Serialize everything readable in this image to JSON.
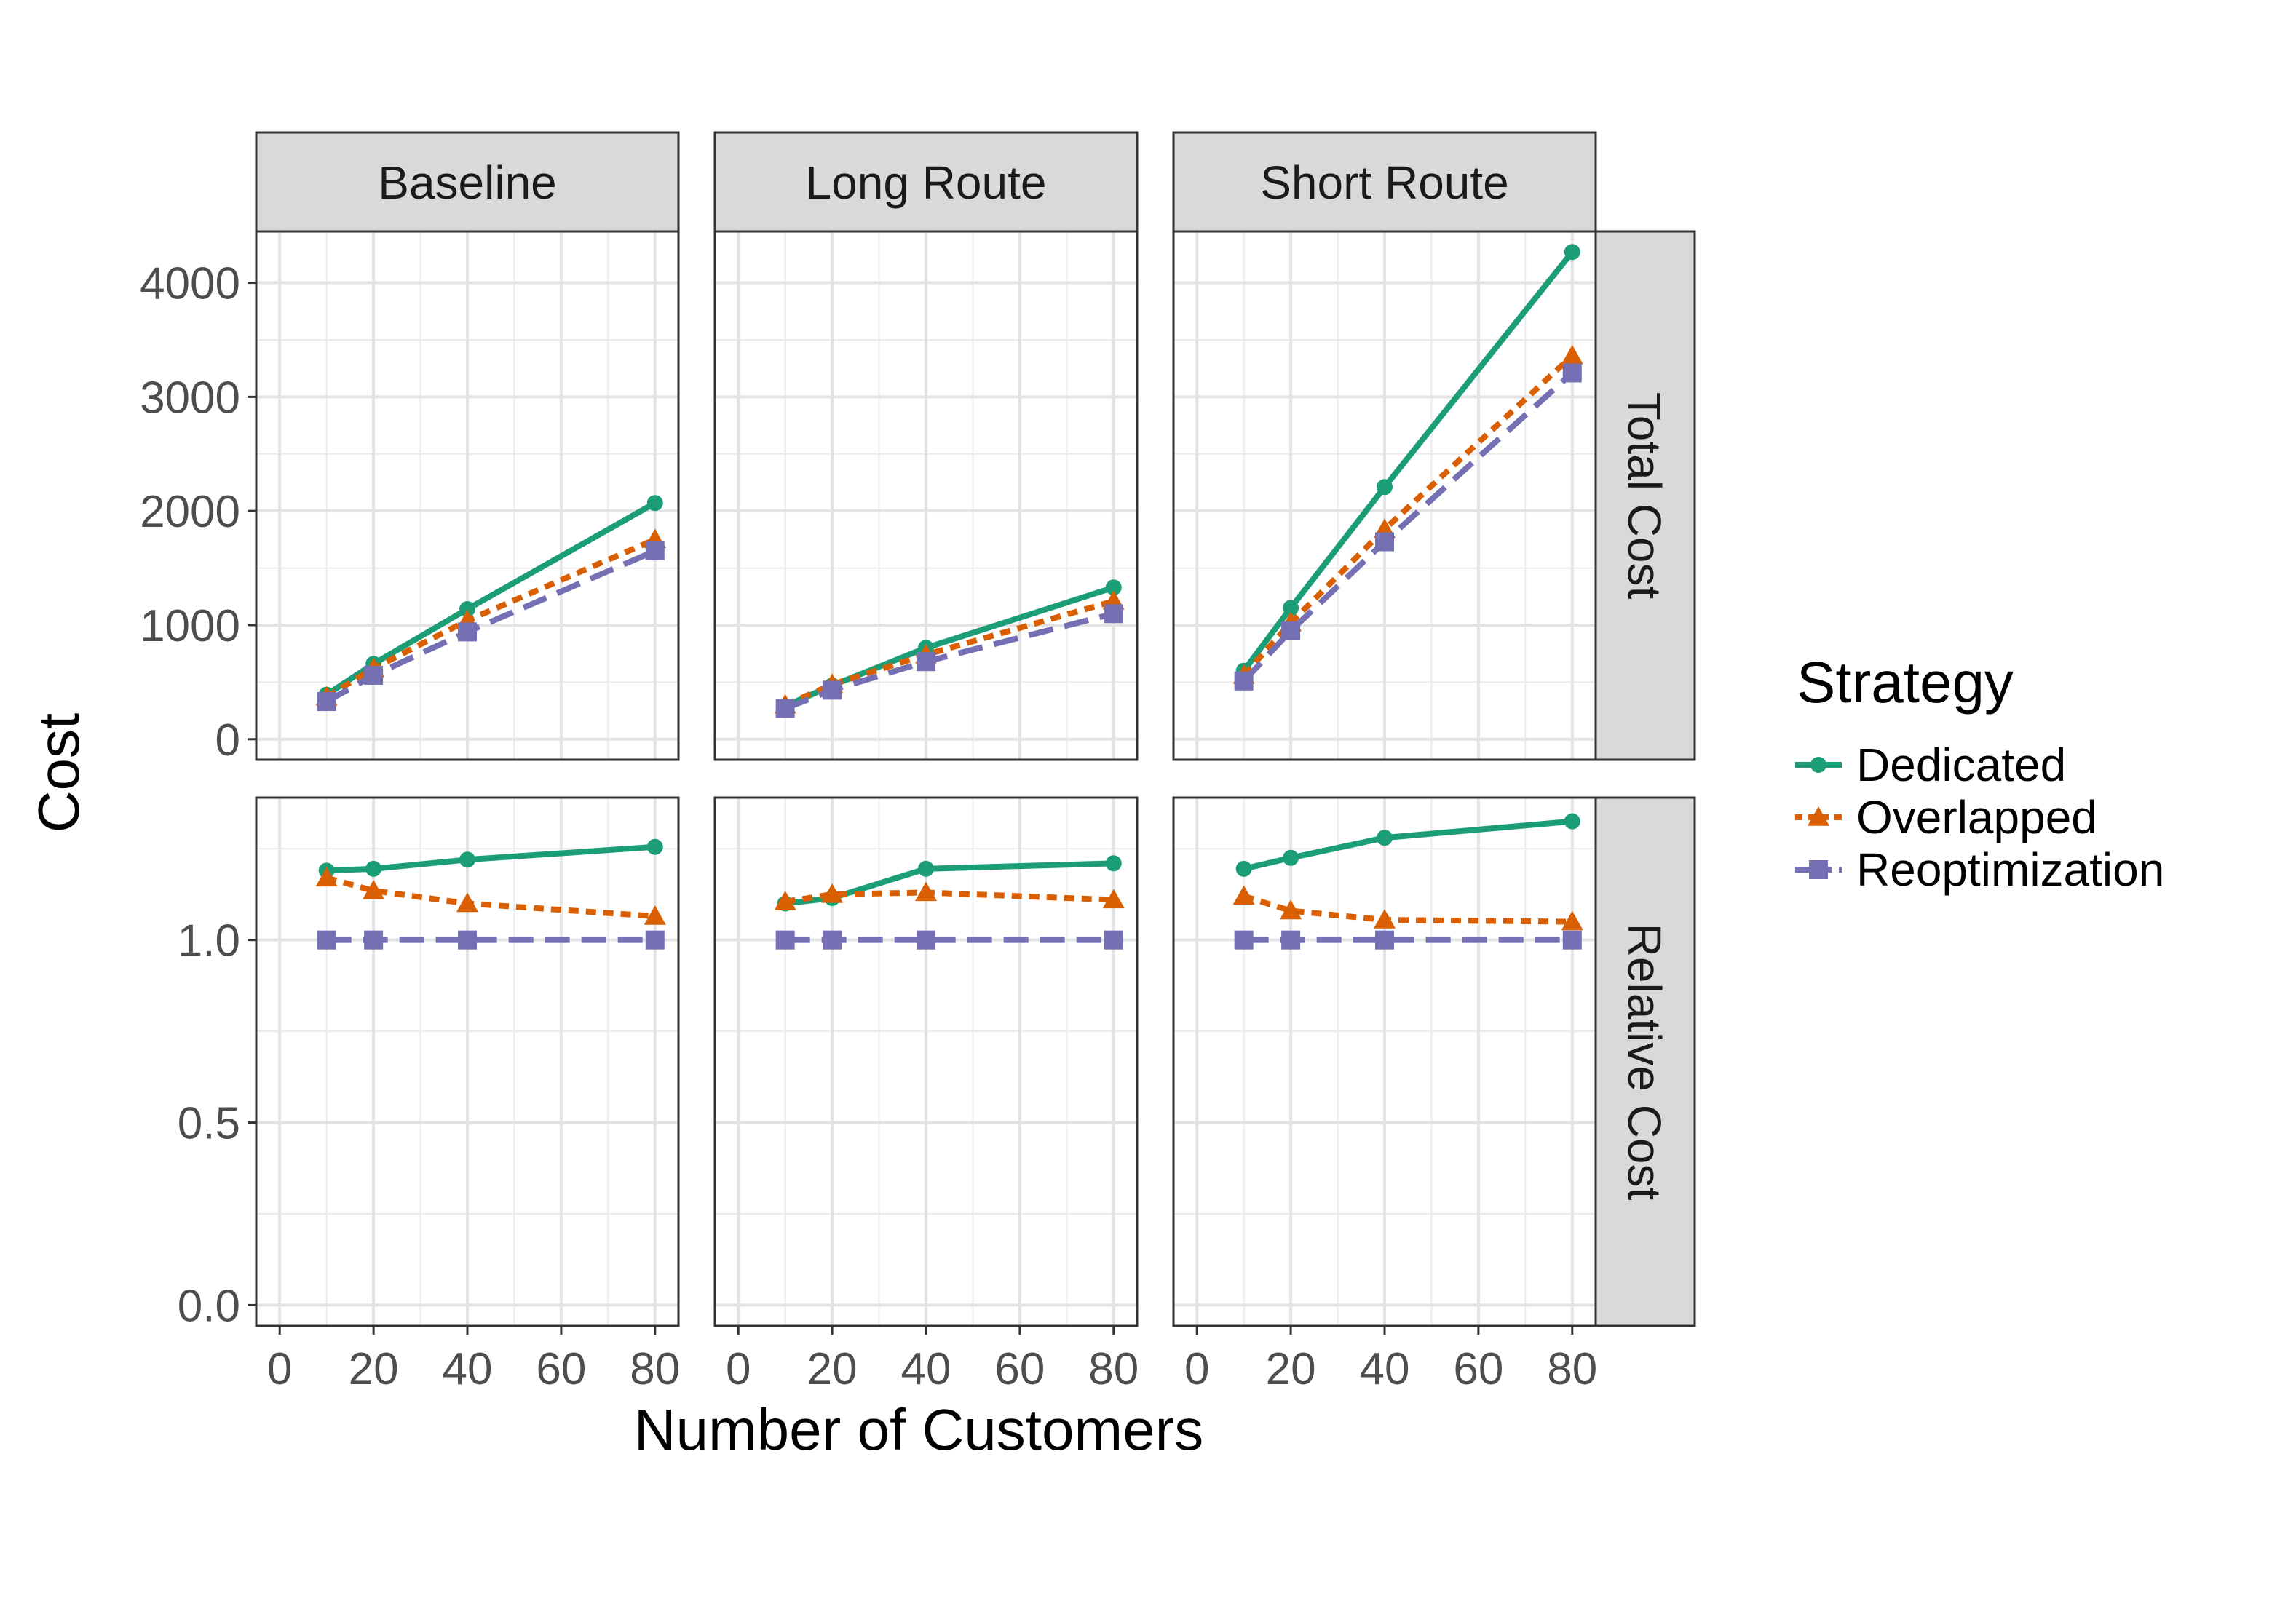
{
  "chart_data": {
    "type": "line",
    "xlabel": "Number of Customers",
    "ylabel": "Cost",
    "x": [
      10,
      20,
      40,
      80
    ],
    "xlim": [
      -5,
      85
    ],
    "x_ticks": [
      0,
      20,
      40,
      60,
      80
    ],
    "grid": true,
    "facet_columns": [
      "Baseline",
      "Long Route",
      "Short Route"
    ],
    "facet_rows": [
      {
        "label": "Total Cost",
        "ylim": [
          -180,
          4450
        ],
        "y_ticks": [
          0,
          1000,
          2000,
          3000,
          4000
        ],
        "tick_labels": [
          "0",
          "1000",
          "2000",
          "3000",
          "4000"
        ]
      },
      {
        "label": "Relative Cost",
        "ylim": [
          -0.057,
          1.39
        ],
        "y_ticks": [
          0.0,
          0.5,
          1.0
        ],
        "tick_labels": [
          "0.0",
          "0.5",
          "1.0"
        ]
      }
    ],
    "legend": {
      "title": "Strategy",
      "position": "right"
    },
    "series": [
      {
        "name": "Dedicated",
        "color": "#1b9e77",
        "marker": "circle",
        "dash": "solid"
      },
      {
        "name": "Overlapped",
        "color": "#d95f02",
        "marker": "triangle",
        "dash": "dotted"
      },
      {
        "name": "Reoptimization",
        "color": "#7570b3",
        "marker": "square",
        "dash": "dashed"
      }
    ],
    "panels": [
      {
        "row": "Total Cost",
        "column": "Baseline",
        "values": {
          "Dedicated": [
            390,
            660,
            1140,
            2070
          ],
          "Overlapped": [
            370,
            620,
            1040,
            1750
          ],
          "Reoptimization": [
            330,
            560,
            940,
            1650
          ]
        }
      },
      {
        "row": "Total Cost",
        "column": "Long Route",
        "values": {
          "Dedicated": [
            290,
            470,
            800,
            1330
          ],
          "Overlapped": [
            300,
            480,
            740,
            1210
          ],
          "Reoptimization": [
            270,
            430,
            680,
            1100
          ]
        }
      },
      {
        "row": "Total Cost",
        "column": "Short Route",
        "values": {
          "Dedicated": [
            600,
            1150,
            2210,
            4270
          ],
          "Overlapped": [
            560,
            1020,
            1840,
            3360
          ],
          "Reoptimization": [
            510,
            950,
            1730,
            3210
          ]
        }
      },
      {
        "row": "Relative Cost",
        "column": "Baseline",
        "values": {
          "Dedicated": [
            1.19,
            1.195,
            1.22,
            1.255
          ],
          "Overlapped": [
            1.17,
            1.135,
            1.1,
            1.065
          ],
          "Reoptimization": [
            1.0,
            1.0,
            1.0,
            1.0
          ]
        }
      },
      {
        "row": "Relative Cost",
        "column": "Long Route",
        "values": {
          "Dedicated": [
            1.1,
            1.115,
            1.195,
            1.21
          ],
          "Overlapped": [
            1.105,
            1.125,
            1.13,
            1.11
          ],
          "Reoptimization": [
            1.0,
            1.0,
            1.0,
            1.0
          ]
        }
      },
      {
        "row": "Relative Cost",
        "column": "Short Route",
        "values": {
          "Dedicated": [
            1.195,
            1.225,
            1.28,
            1.325
          ],
          "Overlapped": [
            1.12,
            1.08,
            1.055,
            1.05
          ],
          "Reoptimization": [
            1.0,
            1.0,
            1.0,
            1.0
          ]
        }
      }
    ]
  }
}
